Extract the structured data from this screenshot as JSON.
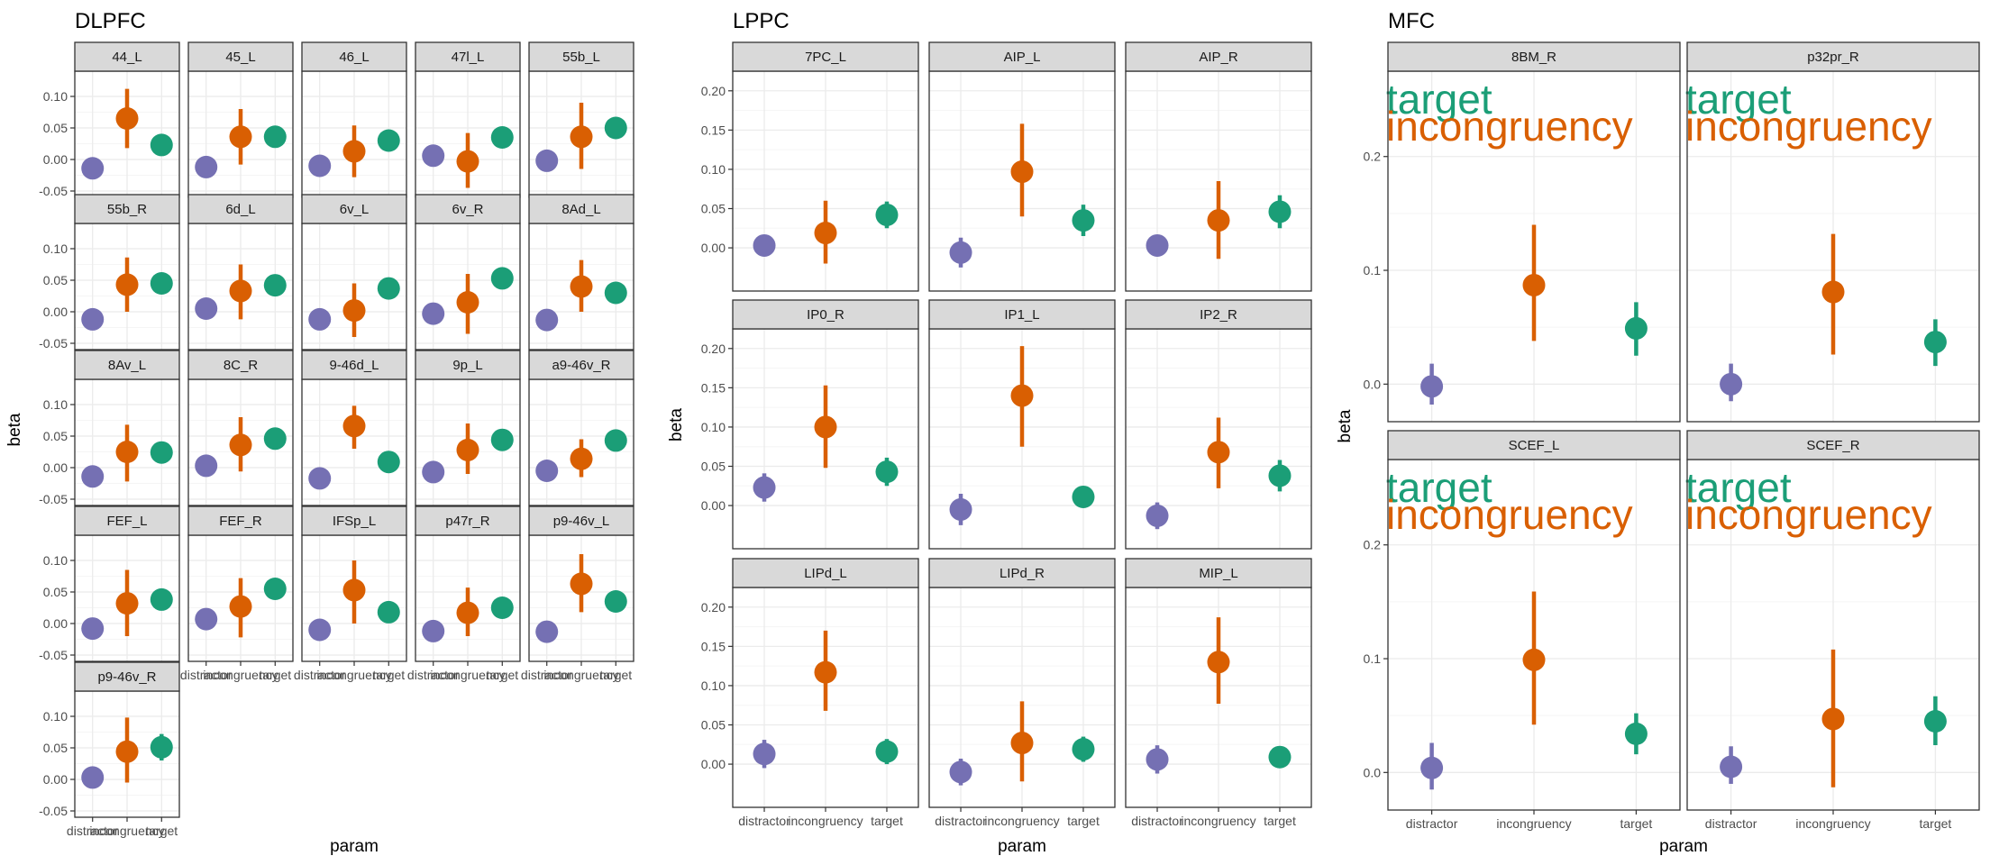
{
  "chart_data": [
    {
      "type": "scatter",
      "title": "DLPFC",
      "xlabel": "param",
      "ylabel": "beta",
      "categories": [
        "distractor",
        "incongruency",
        "target"
      ],
      "ylim": [
        -0.06,
        0.14
      ],
      "yticks": [
        -0.05,
        0.0,
        0.05,
        0.1
      ],
      "ytick_labels": [
        "-0.05",
        "0.00",
        "0.05",
        "0.10"
      ],
      "grid": true,
      "ncol": 5,
      "panels": [
        {
          "name": "44_L",
          "values": [
            -0.014,
            0.065,
            0.023
          ],
          "lo": [
            -0.022,
            0.018,
            0.012
          ],
          "hi": [
            -0.006,
            0.112,
            0.034
          ]
        },
        {
          "name": "45_L",
          "values": [
            -0.012,
            0.036,
            0.036
          ],
          "lo": [
            -0.02,
            -0.008,
            0.025
          ],
          "hi": [
            -0.004,
            0.08,
            0.047
          ]
        },
        {
          "name": "46_L",
          "values": [
            -0.01,
            0.013,
            0.03
          ],
          "lo": [
            -0.018,
            -0.028,
            0.019
          ],
          "hi": [
            -0.002,
            0.054,
            0.041
          ]
        },
        {
          "name": "47l_L",
          "values": [
            0.006,
            -0.003,
            0.035
          ],
          "lo": [
            -0.006,
            -0.045,
            0.026
          ],
          "hi": [
            0.018,
            0.042,
            0.044
          ]
        },
        {
          "name": "55b_L",
          "values": [
            -0.002,
            0.036,
            0.05
          ],
          "lo": [
            -0.01,
            -0.015,
            0.033
          ],
          "hi": [
            0.006,
            0.09,
            0.067
          ]
        },
        {
          "name": "55b_R",
          "values": [
            -0.012,
            0.043,
            0.045
          ],
          "lo": [
            -0.02,
            0.0,
            0.034
          ],
          "hi": [
            -0.004,
            0.086,
            0.056
          ]
        },
        {
          "name": "6d_L",
          "values": [
            0.005,
            0.033,
            0.042
          ],
          "lo": [
            -0.003,
            -0.012,
            0.031
          ],
          "hi": [
            0.013,
            0.075,
            0.053
          ]
        },
        {
          "name": "6v_L",
          "values": [
            -0.012,
            0.002,
            0.037
          ],
          "lo": [
            -0.02,
            -0.04,
            0.026
          ],
          "hi": [
            -0.004,
            0.045,
            0.048
          ]
        },
        {
          "name": "6v_R",
          "values": [
            -0.003,
            0.015,
            0.053
          ],
          "lo": [
            -0.011,
            -0.035,
            0.042
          ],
          "hi": [
            0.005,
            0.06,
            0.07
          ]
        },
        {
          "name": "8Ad_L",
          "values": [
            -0.013,
            0.04,
            0.03
          ],
          "lo": [
            -0.021,
            0.0,
            0.019
          ],
          "hi": [
            -0.005,
            0.082,
            0.041
          ]
        },
        {
          "name": "8Av_L",
          "values": [
            -0.014,
            0.025,
            0.024
          ],
          "lo": [
            -0.022,
            -0.022,
            0.013
          ],
          "hi": [
            -0.006,
            0.068,
            0.035
          ]
        },
        {
          "name": "8C_R",
          "values": [
            0.003,
            0.036,
            0.046
          ],
          "lo": [
            -0.005,
            -0.006,
            0.035
          ],
          "hi": [
            0.011,
            0.08,
            0.057
          ]
        },
        {
          "name": "9-46d_L",
          "values": [
            -0.017,
            0.066,
            0.009
          ],
          "lo": [
            -0.025,
            0.03,
            -0.002
          ],
          "hi": [
            -0.009,
            0.098,
            0.02
          ]
        },
        {
          "name": "9p_L",
          "values": [
            -0.007,
            0.028,
            0.044
          ],
          "lo": [
            -0.015,
            -0.01,
            0.033
          ],
          "hi": [
            0.001,
            0.07,
            0.055
          ]
        },
        {
          "name": "a9-46v_R",
          "values": [
            -0.005,
            0.014,
            0.043
          ],
          "lo": [
            -0.013,
            -0.015,
            0.032
          ],
          "hi": [
            0.003,
            0.045,
            0.054
          ]
        },
        {
          "name": "FEF_L",
          "values": [
            -0.008,
            0.032,
            0.038
          ],
          "lo": [
            -0.016,
            -0.02,
            0.027
          ],
          "hi": [
            0.0,
            0.085,
            0.049
          ]
        },
        {
          "name": "FEF_R",
          "values": [
            0.007,
            0.027,
            0.055
          ],
          "lo": [
            -0.001,
            -0.022,
            0.044
          ],
          "hi": [
            0.015,
            0.072,
            0.066
          ]
        },
        {
          "name": "IFSp_L",
          "values": [
            -0.01,
            0.053,
            0.018
          ],
          "lo": [
            -0.018,
            0.0,
            0.007
          ],
          "hi": [
            -0.002,
            0.1,
            0.029
          ]
        },
        {
          "name": "p47r_R",
          "values": [
            -0.012,
            0.017,
            0.025
          ],
          "lo": [
            -0.02,
            -0.02,
            0.014
          ],
          "hi": [
            -0.004,
            0.057,
            0.036
          ]
        },
        {
          "name": "p9-46v_L",
          "values": [
            -0.013,
            0.063,
            0.035
          ],
          "lo": [
            -0.021,
            0.018,
            0.024
          ],
          "hi": [
            -0.005,
            0.11,
            0.046
          ]
        },
        {
          "name": "p9-46v_R",
          "values": [
            0.003,
            0.044,
            0.051
          ],
          "lo": [
            -0.005,
            -0.005,
            0.03
          ],
          "hi": [
            0.011,
            0.098,
            0.072
          ]
        }
      ]
    },
    {
      "type": "scatter",
      "title": "LPPC",
      "xlabel": "param",
      "ylabel": "beta",
      "categories": [
        "distractor",
        "incongruency",
        "target"
      ],
      "ylim": [
        -0.055,
        0.225
      ],
      "yticks": [
        0.0,
        0.05,
        0.1,
        0.15,
        0.2
      ],
      "ytick_labels": [
        "0.00",
        "0.05",
        "0.10",
        "0.15",
        "0.20"
      ],
      "grid": true,
      "ncol": 3,
      "panels": [
        {
          "name": "7PC_L",
          "values": [
            0.003,
            0.019,
            0.042
          ],
          "lo": [
            -0.01,
            -0.02,
            0.025
          ],
          "hi": [
            0.016,
            0.06,
            0.059
          ]
        },
        {
          "name": "AIP_L",
          "values": [
            -0.006,
            0.097,
            0.035
          ],
          "lo": [
            -0.025,
            0.04,
            0.015
          ],
          "hi": [
            0.013,
            0.158,
            0.055
          ]
        },
        {
          "name": "AIP_R",
          "values": [
            0.003,
            0.035,
            0.046
          ],
          "lo": [
            -0.007,
            -0.014,
            0.025
          ],
          "hi": [
            0.013,
            0.085,
            0.067
          ]
        },
        {
          "name": "IP0_R",
          "values": [
            0.023,
            0.1,
            0.043
          ],
          "lo": [
            0.005,
            0.048,
            0.025
          ],
          "hi": [
            0.041,
            0.153,
            0.061
          ]
        },
        {
          "name": "IP1_L",
          "values": [
            -0.005,
            0.14,
            0.011
          ],
          "lo": [
            -0.025,
            0.075,
            -0.001
          ],
          "hi": [
            0.015,
            0.203,
            0.023
          ]
        },
        {
          "name": "IP2_R",
          "values": [
            -0.013,
            0.068,
            0.038
          ],
          "lo": [
            -0.03,
            0.022,
            0.018
          ],
          "hi": [
            0.004,
            0.112,
            0.058
          ]
        },
        {
          "name": "LIPd_L",
          "values": [
            0.013,
            0.117,
            0.016
          ],
          "lo": [
            -0.005,
            0.068,
            0.0
          ],
          "hi": [
            0.031,
            0.17,
            0.032
          ]
        },
        {
          "name": "LIPd_R",
          "values": [
            -0.01,
            0.027,
            0.019
          ],
          "lo": [
            -0.027,
            -0.022,
            0.003
          ],
          "hi": [
            0.007,
            0.08,
            0.035
          ]
        },
        {
          "name": "MIP_L",
          "values": [
            0.006,
            0.13,
            0.009
          ],
          "lo": [
            -0.012,
            0.077,
            -0.004
          ],
          "hi": [
            0.024,
            0.187,
            0.022
          ]
        }
      ]
    },
    {
      "type": "scatter",
      "title": "MFC",
      "xlabel": "param",
      "ylabel": "beta",
      "categories": [
        "distractor",
        "incongruency",
        "target"
      ],
      "ylim": [
        -0.033,
        0.275
      ],
      "yticks": [
        0.0,
        0.1,
        0.2
      ],
      "ytick_labels": [
        "0.0",
        "0.1",
        "0.2"
      ],
      "grid": true,
      "ncol": 2,
      "panels": [
        {
          "name": "8BM_R",
          "values": [
            -0.002,
            0.087,
            0.049
          ],
          "lo": [
            -0.018,
            0.038,
            0.025
          ],
          "hi": [
            0.018,
            0.14,
            0.072
          ],
          "annotations": [
            "target",
            "incongruency"
          ]
        },
        {
          "name": "p32pr_R",
          "values": [
            0.0,
            0.081,
            0.037
          ],
          "lo": [
            -0.015,
            0.026,
            0.016
          ],
          "hi": [
            0.018,
            0.132,
            0.057
          ],
          "annotations": [
            "target",
            "incongruency"
          ]
        },
        {
          "name": "SCEF_L",
          "values": [
            0.004,
            0.099,
            0.034
          ],
          "lo": [
            -0.015,
            0.042,
            0.016
          ],
          "hi": [
            0.026,
            0.159,
            0.052
          ],
          "annotations": [
            "target",
            "incongruency"
          ]
        },
        {
          "name": "SCEF_R",
          "values": [
            0.005,
            0.047,
            0.045
          ],
          "lo": [
            -0.01,
            -0.013,
            0.024
          ],
          "hi": [
            0.023,
            0.108,
            0.067
          ],
          "annotations": [
            "target",
            "incongruency"
          ]
        }
      ]
    }
  ],
  "colors": {
    "distractor": "#7570B3",
    "incongruency": "#D95F02",
    "target": "#1B9E77",
    "strip_fill": "#D9D9D9",
    "grid_major": "#EBEBEB",
    "grid_minor": "#F5F5F5",
    "panel_border": "#333333"
  }
}
